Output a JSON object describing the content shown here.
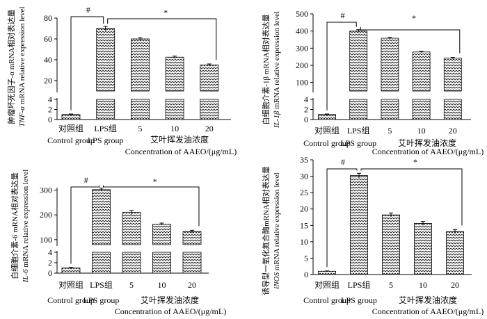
{
  "colors": {
    "bar_fill": "#ffffff",
    "bar_stroke": "#000000",
    "zigzag": "#000000"
  },
  "x_title_cn": "艾叶挥发油浓度",
  "x_title_en": "Concentration of AAEO/(μg/mL)",
  "chart_data": [
    {
      "type": "bar",
      "ylabel_cn_prefix": "肿瘤坏死因子-α mRNA相对表达量",
      "ylabel_en_italic": "TNF-α",
      "ylabel_en_rest": " mRNA relative expression level",
      "categories": [
        {
          "cn": "对照组",
          "en": "Control group"
        },
        {
          "cn": "LPS组",
          "en": "LPS group"
        },
        {
          "cn": "5",
          "en": ""
        },
        {
          "cn": "10",
          "en": ""
        },
        {
          "cn": "20",
          "en": ""
        }
      ],
      "values": [
        1,
        70,
        60,
        42.5,
        35
      ],
      "errors": [
        0.1,
        2,
        1.2,
        1,
        1
      ],
      "broken_axis": {
        "lower_range": [
          0,
          4
        ],
        "lower_ticks": [
          0,
          2,
          4
        ],
        "upper_range": [
          10,
          80
        ],
        "upper_ticks": [
          20,
          40,
          60,
          80
        ]
      },
      "significance": [
        {
          "symbol": "#"
        },
        {
          "symbol": "*"
        }
      ]
    },
    {
      "type": "bar",
      "ylabel_cn_prefix": "白细胞介素-1β mRNA相对表达量",
      "ylabel_en_italic": "IL-1β",
      "ylabel_en_rest": " mRNA relative expression level",
      "categories": [
        {
          "cn": "对照组",
          "en": "Control group"
        },
        {
          "cn": "LPS组",
          "en": "LPS group"
        },
        {
          "cn": "5",
          "en": ""
        },
        {
          "cn": "10",
          "en": ""
        },
        {
          "cn": "20",
          "en": ""
        }
      ],
      "values": [
        1,
        400,
        358,
        278,
        242
      ],
      "errors": [
        0.1,
        8,
        5,
        4,
        4
      ],
      "broken_axis": {
        "lower_range": [
          0,
          4
        ],
        "lower_ticks": [
          0,
          2,
          4
        ],
        "upper_range": [
          50,
          500
        ],
        "upper_ticks": [
          100,
          200,
          300,
          400,
          500
        ]
      },
      "significance": [
        {
          "symbol": "#"
        },
        {
          "symbol": "*"
        }
      ]
    },
    {
      "type": "bar",
      "ylabel_cn_prefix": "白细胞介素-6 mRNA相对表达量",
      "ylabel_en_italic": "IL-6",
      "ylabel_en_rest": " mRNA relative expression level",
      "categories": [
        {
          "cn": "对照组",
          "en": "Control group"
        },
        {
          "cn": "LPS组",
          "en": "LPS group"
        },
        {
          "cn": "5",
          "en": ""
        },
        {
          "cn": "10",
          "en": ""
        },
        {
          "cn": "20",
          "en": ""
        }
      ],
      "values": [
        1,
        302,
        210,
        163,
        133
      ],
      "errors": [
        0.1,
        6,
        8,
        4,
        5
      ],
      "broken_axis": {
        "lower_range": [
          0,
          4
        ],
        "lower_ticks": [
          0,
          2,
          4
        ],
        "upper_range": [
          80,
          310
        ],
        "upper_ticks": [
          100,
          200,
          300
        ]
      },
      "significance": [
        {
          "symbol": "#"
        },
        {
          "symbol": "*"
        }
      ]
    },
    {
      "type": "bar",
      "ylabel_cn_prefix": "诱导型一氧化氮合酶mRNA相对表达量",
      "ylabel_en_italic": "iNOS",
      "ylabel_en_rest": " mRNA relative expression level",
      "categories": [
        {
          "cn": "对照组",
          "en": "Control group"
        },
        {
          "cn": "LPS组",
          "en": "LPS group"
        },
        {
          "cn": "5",
          "en": ""
        },
        {
          "cn": "10",
          "en": ""
        },
        {
          "cn": "20",
          "en": ""
        }
      ],
      "values": [
        1,
        30.2,
        18.2,
        15.6,
        13.1
      ],
      "errors": [
        0.1,
        0.7,
        0.6,
        0.6,
        0.6
      ],
      "axis": {
        "range": [
          0,
          35
        ],
        "ticks": [
          0,
          5,
          10,
          15,
          20,
          25,
          30,
          35
        ]
      },
      "significance": [
        {
          "symbol": "#"
        },
        {
          "symbol": "*"
        }
      ]
    }
  ]
}
